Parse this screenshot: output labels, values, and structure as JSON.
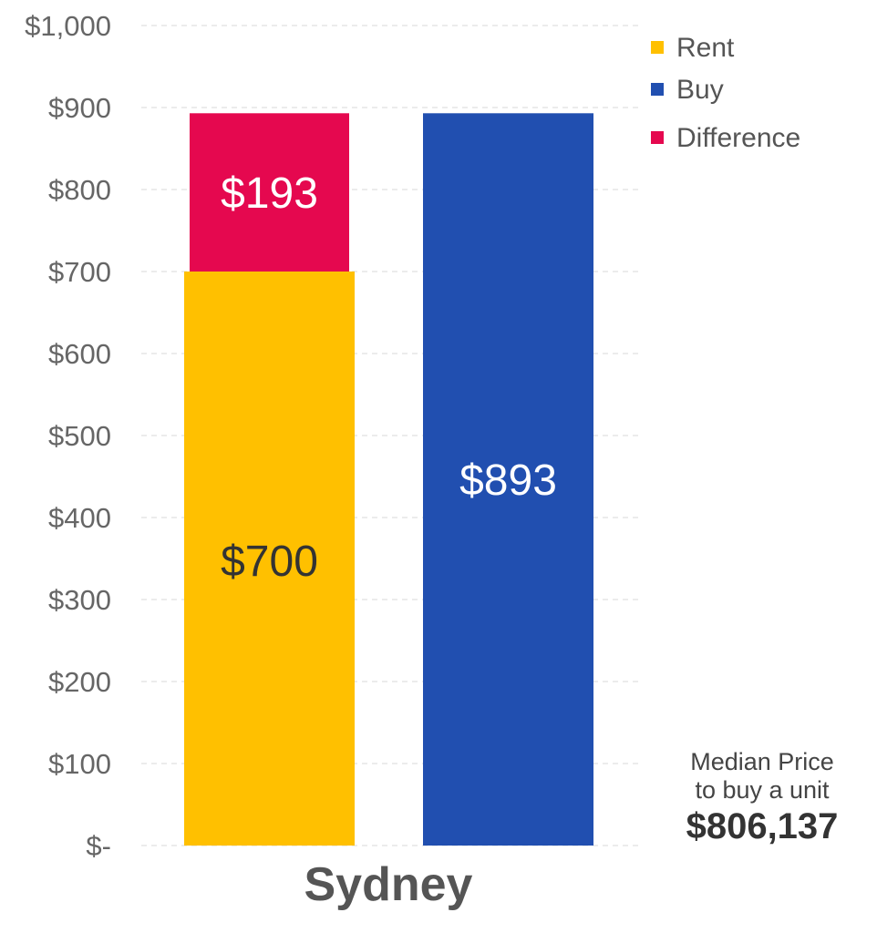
{
  "chart_data": {
    "type": "bar",
    "categories": [
      "Sydney"
    ],
    "ylim": [
      0,
      1000
    ],
    "yticks": [
      {
        "value": 0,
        "label": "$-"
      },
      {
        "value": 100,
        "label": "$100"
      },
      {
        "value": 200,
        "label": "$200"
      },
      {
        "value": 300,
        "label": "$300"
      },
      {
        "value": 400,
        "label": "$400"
      },
      {
        "value": 500,
        "label": "$500"
      },
      {
        "value": 600,
        "label": "$600"
      },
      {
        "value": 700,
        "label": "$700"
      },
      {
        "value": 800,
        "label": "$800"
      },
      {
        "value": 900,
        "label": "$900"
      },
      {
        "value": 1000,
        "label": "$1,000"
      }
    ],
    "grid": true,
    "legend_position": "top-right",
    "series": [
      {
        "name": "Rent",
        "values": [
          700
        ],
        "labels": [
          "$700"
        ],
        "color": "#FFC000",
        "label_color": "#333333"
      },
      {
        "name": "Buy",
        "values": [
          893
        ],
        "labels": [
          "$893"
        ],
        "color": "#214FB0",
        "label_color": "#FFFFFF"
      },
      {
        "name": "Difference",
        "values": [
          193
        ],
        "labels": [
          "$193"
        ],
        "color": "#E5084F",
        "label_color": "#FFFFFF"
      }
    ],
    "stacking": {
      "Difference": "Rent"
    },
    "annotation": {
      "line1": "Median Price",
      "line2": "to buy a unit",
      "value": "$806,137"
    }
  }
}
